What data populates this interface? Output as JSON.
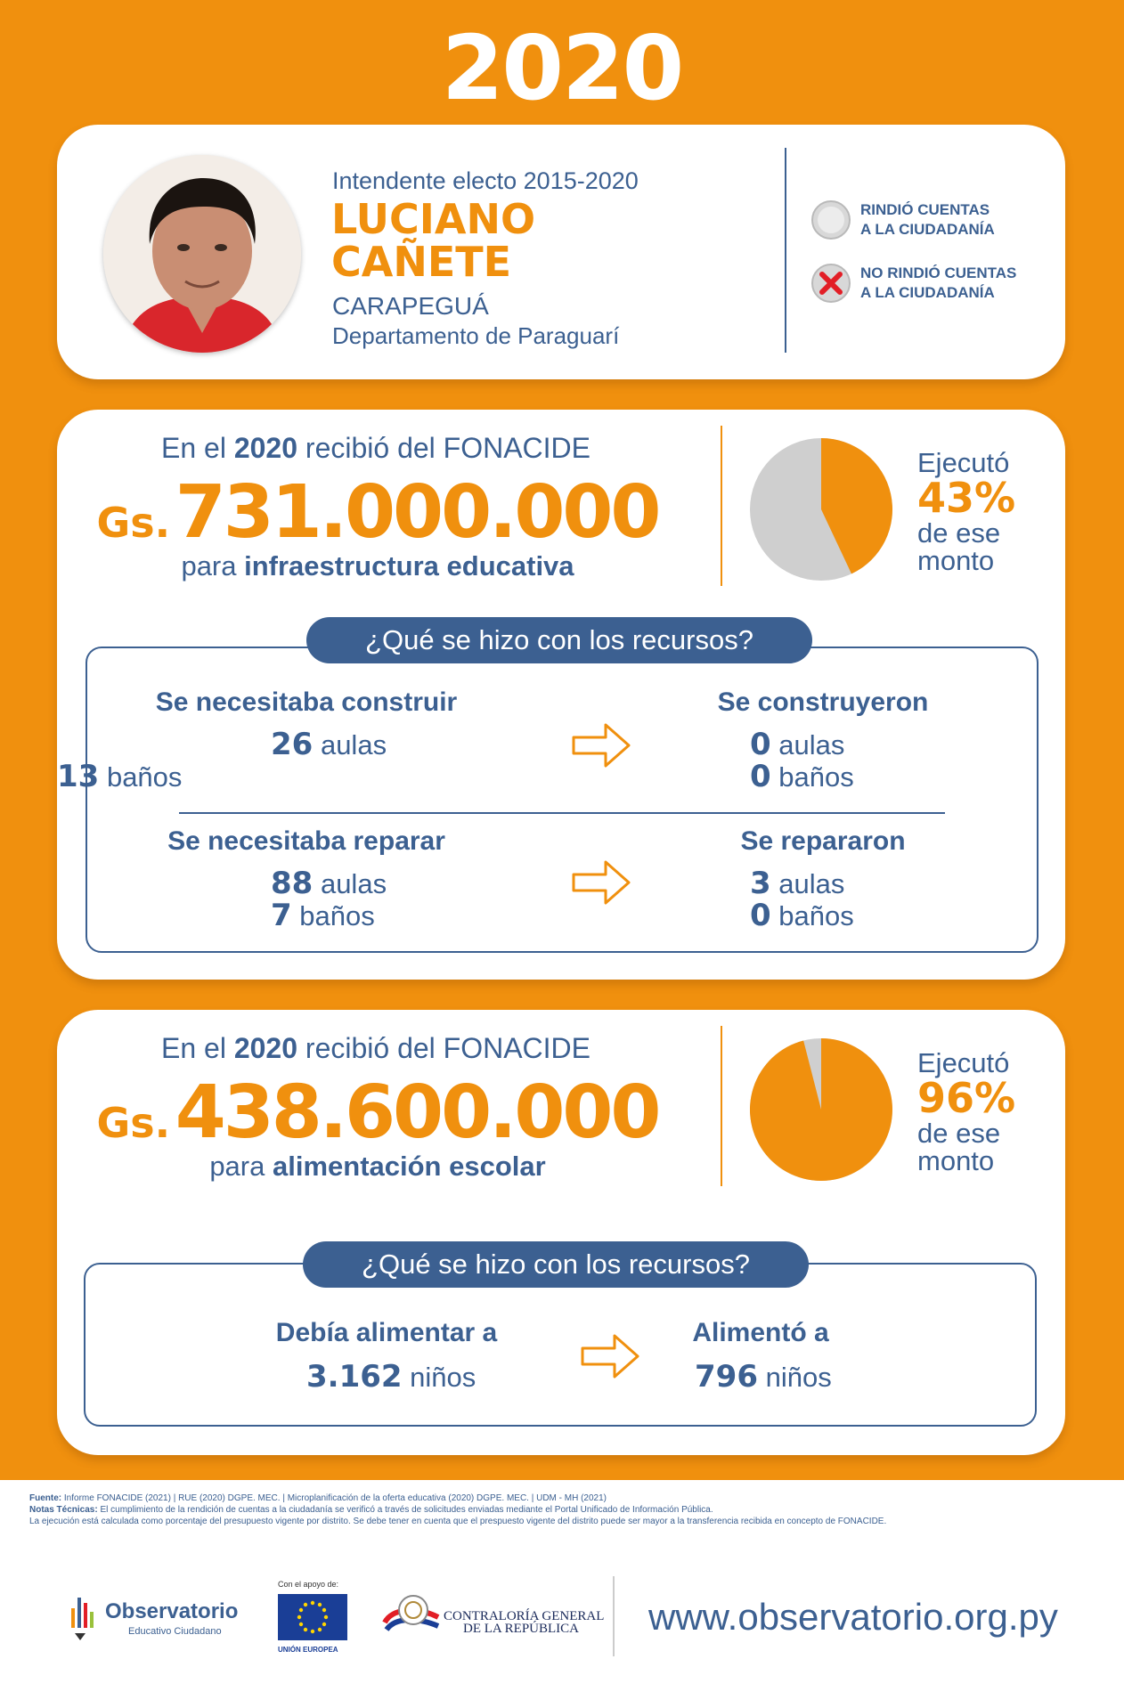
{
  "year": "2020",
  "profile": {
    "role": "Intendente electo 2015-2020",
    "name_line1": "LUCIANO",
    "name_line2": "CAÑETE",
    "city": "CARAPEGUÁ",
    "department": "Departamento de Paraguarí",
    "legend": [
      {
        "label_line1": "RINDIÓ CUENTAS",
        "label_line2": "A LA CIUDADANÍA",
        "icon": "gray-circle-icon"
      },
      {
        "label_line1": "NO RINDIÓ CUENTAS",
        "label_line2": "A LA CIUDADANÍA",
        "icon": "red-x-circle-icon"
      }
    ]
  },
  "infra": {
    "received_prefix": "En el",
    "received_year": "2020",
    "received_suffix": "recibió del FONACIDE",
    "currency": "Gs.",
    "amount": "731.000.000",
    "purpose_prefix": "para",
    "purpose": "infraestructura educativa",
    "executed_label": "Ejecutó",
    "executed_pct": "43%",
    "executed_fraction": 0.43,
    "executed_suffix_1": "de ese",
    "executed_suffix_2": "monto",
    "question": "¿Qué se hizo con los recursos?",
    "build_needed_title": "Se necesitaba construir",
    "build_needed_aulas": "26",
    "build_needed_banos": "13",
    "built_title": "Se construyeron",
    "built_aulas": "0",
    "built_banos": "0",
    "repair_needed_title": "Se necesitaba reparar",
    "repair_needed_aulas": "88",
    "repair_needed_banos": "7",
    "repaired_title": "Se repararon",
    "repaired_aulas": "3",
    "repaired_banos": "0",
    "aulas_label": "aulas",
    "banos_label": "baños"
  },
  "food": {
    "received_prefix": "En el",
    "received_year": "2020",
    "received_suffix": "recibió del FONACIDE",
    "currency": "Gs.",
    "amount": "438.600.000",
    "purpose_prefix": "para",
    "purpose": "alimentación escolar",
    "executed_label": "Ejecutó",
    "executed_pct": "96%",
    "executed_fraction": 0.96,
    "executed_suffix_1": "de ese",
    "executed_suffix_2": "monto",
    "question": "¿Qué se hizo con los recursos?",
    "needed_title": "Debía alimentar a",
    "needed_count": "3.162",
    "fed_title": "Alimentó a",
    "fed_count": "796",
    "unit": "niños"
  },
  "colors": {
    "orange": "#F0900E",
    "blue": "#3C6091",
    "pie_gray": "#CFCFCF",
    "red": "#E21E26"
  },
  "footer": {
    "source_label": "Fuente:",
    "source_text": "Informe FONACIDE (2021) | RUE (2020) DGPE. MEC. | Microplanificación de la oferta educativa (2020) DGPE. MEC. | UDM - MH (2021)",
    "notes_label": "Notas Técnicas:",
    "notes_text": "El cumplimiento de la rendición de cuentas a la ciudadanía se verificó a través de solicitudes enviadas mediante el Portal Unificado de Información Pública.",
    "notes_text_2": "La ejecución está calculada como porcentaje del presupuesto vigente por distrito. Se debe tener en cuenta que el prespuesto vigente del distrito puede ser mayor a la transferencia recibida en concepto de FONACIDE.",
    "obs_name": "Observatorio",
    "obs_sub": "Educativo Ciudadano",
    "eu_top": "Con el apoyo de:",
    "eu_bottom": "UNIÓN EUROPEA",
    "cgr_line1": "CONTRALORÍA GENERAL",
    "cgr_line2": "DE LA REPÚBLICA",
    "url": "www.observatorio.org.py"
  }
}
